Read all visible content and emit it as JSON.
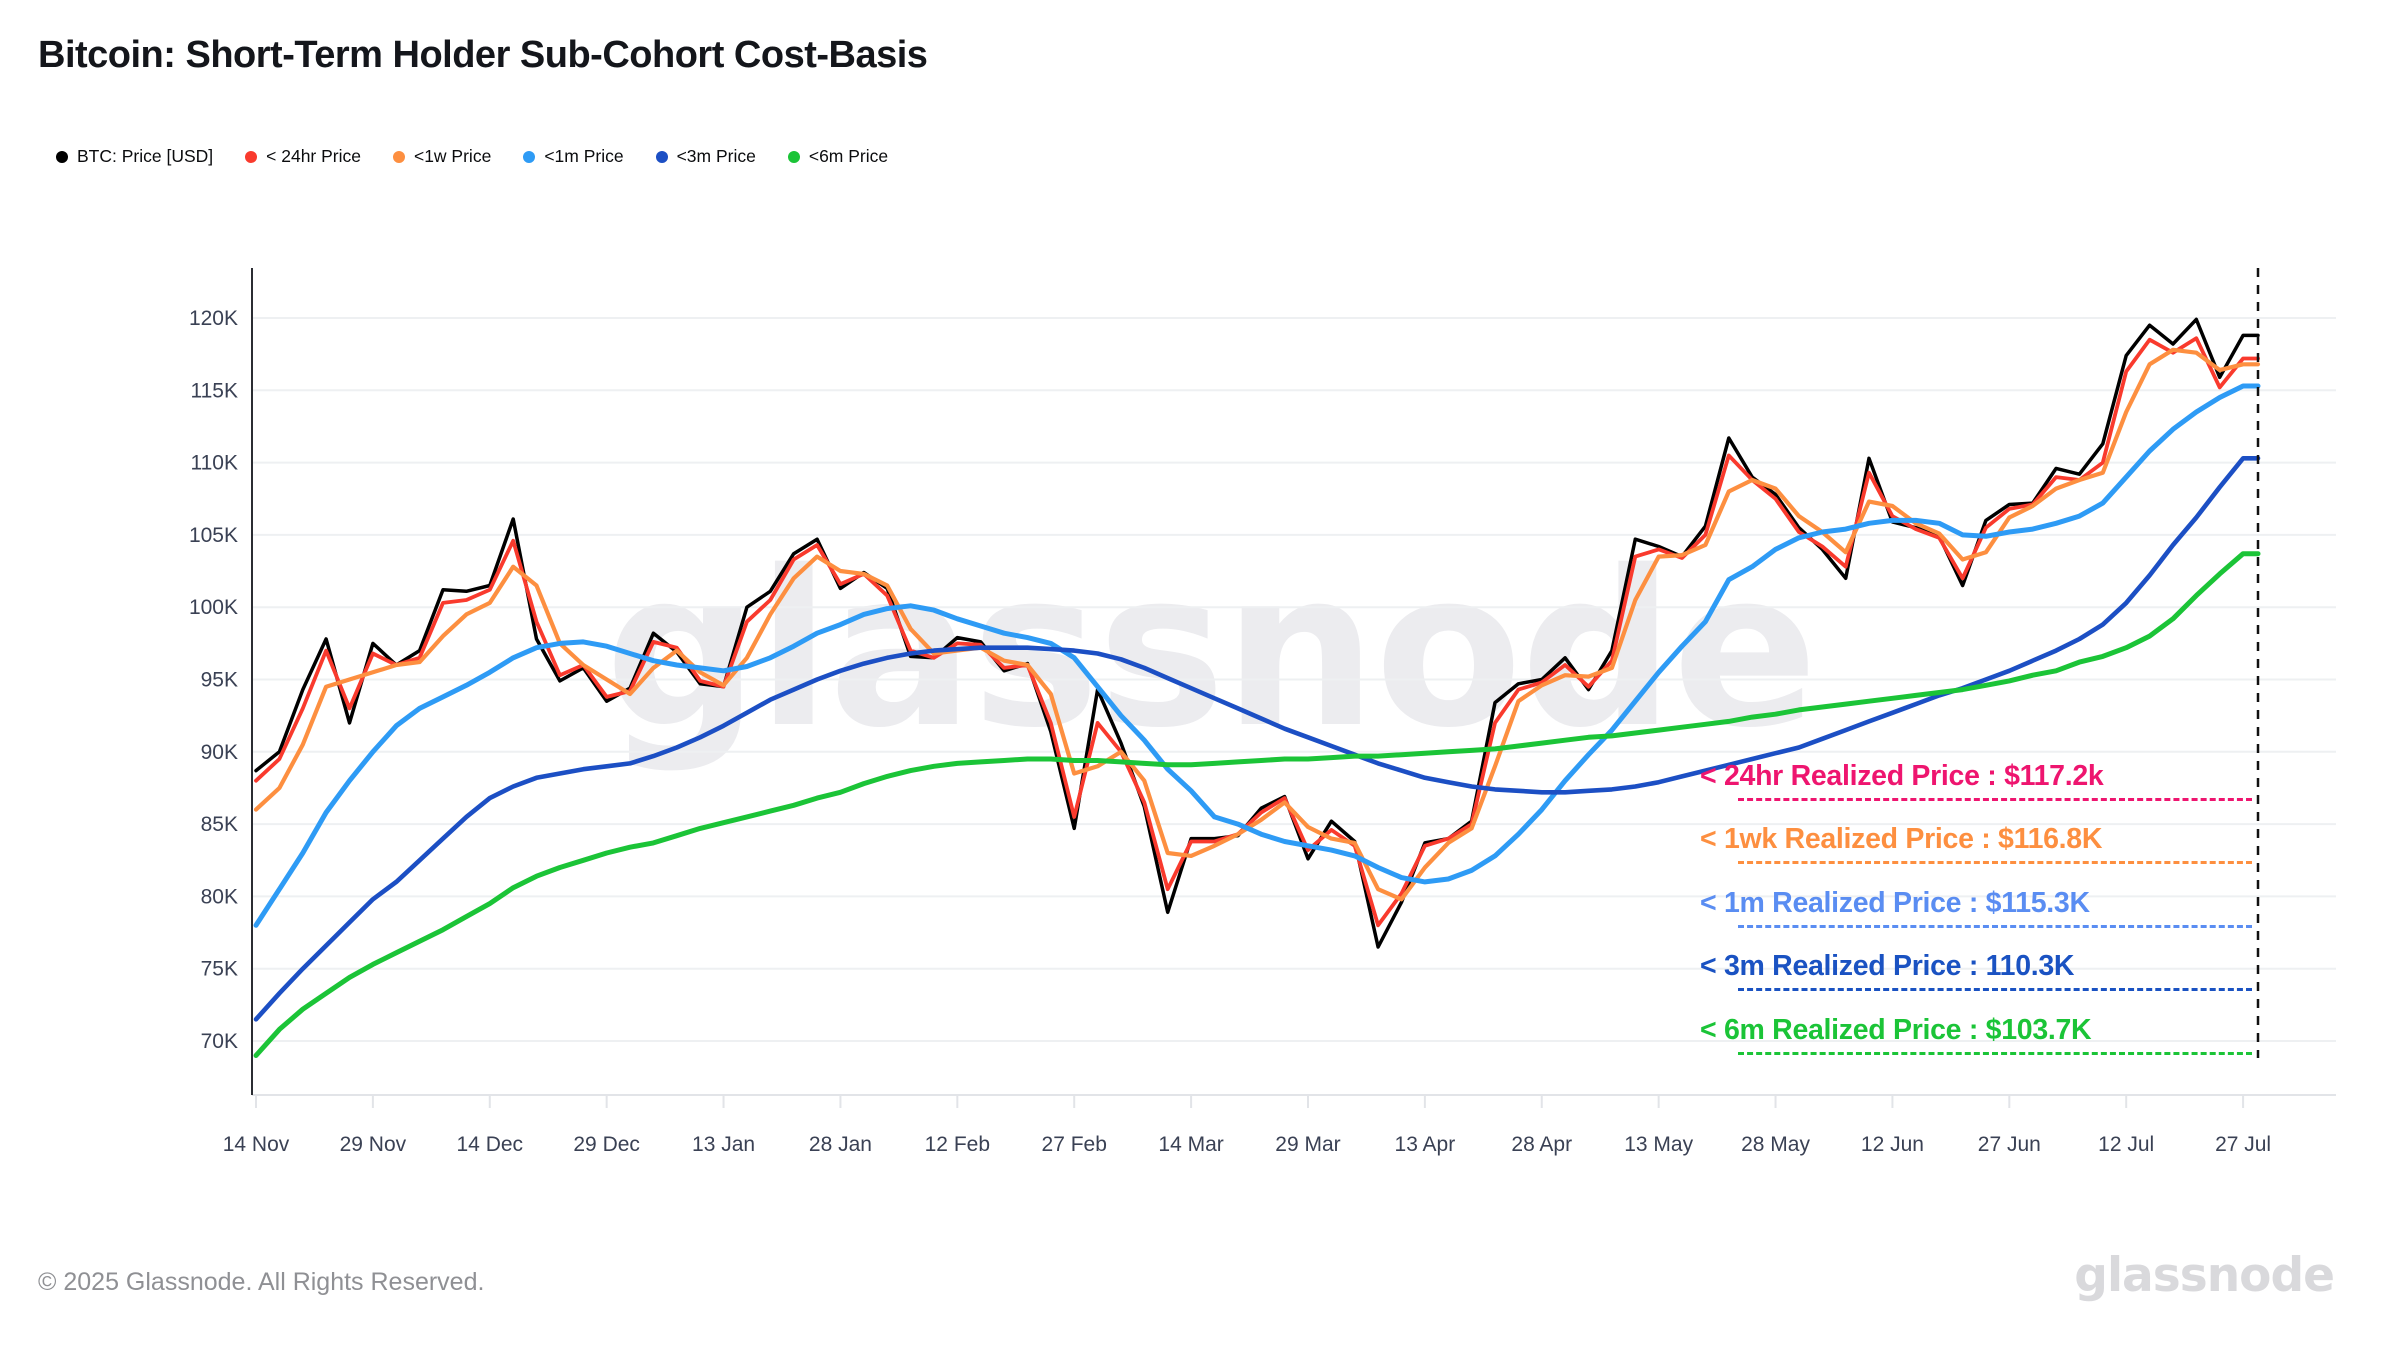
{
  "header": {
    "title": "Bitcoin: Short-Term Holder Sub-Cohort Cost-Basis"
  },
  "legend": {
    "items": [
      {
        "label": "BTC: Price [USD]",
        "color": "#000000"
      },
      {
        "label": "< 24hr Price",
        "color": "#f93a2d"
      },
      {
        "label": "<1w Price",
        "color": "#fd8f40"
      },
      {
        "label": "<1m Price",
        "color": "#2e9bf5"
      },
      {
        "label": "<3m Price",
        "color": "#1c4fc4"
      },
      {
        "label": "<6m Price",
        "color": "#1bc437"
      }
    ]
  },
  "chart_data": {
    "type": "line",
    "title": "Bitcoin: Short-Term Holder Sub-Cohort Cost-Basis",
    "xlabel": "",
    "ylabel": "",
    "unit": "USD (thousands)",
    "grid": true,
    "legend_position": "top-left",
    "ylim": [
      66,
      123.5
    ],
    "y_ticks": [
      {
        "label": "120K",
        "value": 120
      },
      {
        "label": "115K",
        "value": 115
      },
      {
        "label": "110K",
        "value": 110
      },
      {
        "label": "105K",
        "value": 105
      },
      {
        "label": "100K",
        "value": 100
      },
      {
        "label": "95K",
        "value": 95
      },
      {
        "label": "90K",
        "value": 90
      },
      {
        "label": "85K",
        "value": 85
      },
      {
        "label": "80K",
        "value": 80
      },
      {
        "label": "75K",
        "value": 75
      },
      {
        "label": "70K",
        "value": 70
      }
    ],
    "x_ticks": [
      {
        "label": "14 Nov",
        "day": 0
      },
      {
        "label": "29 Nov",
        "day": 15
      },
      {
        "label": "14 Dec",
        "day": 30
      },
      {
        "label": "29 Dec",
        "day": 45
      },
      {
        "label": "13 Jan",
        "day": 60
      },
      {
        "label": "28 Jan",
        "day": 75
      },
      {
        "label": "12 Feb",
        "day": 90
      },
      {
        "label": "27 Feb",
        "day": 105
      },
      {
        "label": "14 Mar",
        "day": 120
      },
      {
        "label": "29 Mar",
        "day": 135
      },
      {
        "label": "13 Apr",
        "day": 150
      },
      {
        "label": "28 Apr",
        "day": 165
      },
      {
        "label": "13 May",
        "day": 180
      },
      {
        "label": "28 May",
        "day": 195
      },
      {
        "label": "12 Jun",
        "day": 210
      },
      {
        "label": "27 Jun",
        "day": 225
      },
      {
        "label": "12 Jul",
        "day": 240
      },
      {
        "label": "27 Jul",
        "day": 255
      }
    ],
    "days": [
      0,
      3,
      6,
      9,
      12,
      15,
      18,
      21,
      24,
      27,
      30,
      33,
      36,
      39,
      42,
      45,
      48,
      51,
      54,
      57,
      60,
      63,
      66,
      69,
      72,
      75,
      78,
      81,
      84,
      87,
      90,
      93,
      96,
      99,
      102,
      105,
      108,
      111,
      114,
      117,
      120,
      123,
      126,
      129,
      132,
      135,
      138,
      141,
      144,
      147,
      150,
      153,
      156,
      159,
      162,
      165,
      168,
      171,
      174,
      177,
      180,
      183,
      186,
      189,
      192,
      195,
      198,
      201,
      204,
      207,
      210,
      213,
      216,
      219,
      222,
      225,
      228,
      231,
      234,
      237,
      240,
      243,
      246,
      249,
      252,
      255
    ],
    "series": [
      {
        "name": "BTC: Price [USD]",
        "color": "#000000",
        "width": 3.5,
        "values": [
          88.7,
          90.0,
          94.3,
          97.8,
          92.0,
          97.5,
          96.0,
          97.0,
          101.2,
          101.1,
          101.5,
          106.1,
          97.8,
          94.9,
          95.8,
          93.5,
          94.4,
          98.2,
          96.9,
          94.7,
          94.5,
          100.0,
          101.1,
          103.7,
          104.7,
          101.3,
          102.4,
          101.3,
          96.6,
          96.5,
          97.9,
          97.6,
          95.6,
          96.1,
          91.4,
          84.7,
          94.3,
          90.6,
          86.2,
          78.9,
          84.0,
          84.0,
          84.2,
          86.1,
          86.9,
          82.6,
          85.2,
          83.8,
          76.5,
          79.6,
          83.7,
          84.0,
          85.2,
          93.4,
          94.7,
          95.0,
          96.5,
          94.3,
          97.0,
          104.7,
          104.2,
          103.5,
          105.6,
          111.7,
          109.0,
          107.8,
          105.5,
          104.0,
          102.0,
          110.3,
          105.9,
          105.5,
          104.9,
          101.5,
          106.0,
          107.1,
          107.2,
          109.6,
          109.2,
          111.3,
          117.4,
          119.5,
          118.2,
          119.9,
          115.9,
          118.8
        ]
      },
      {
        "name": "< 24hr Price",
        "color": "#f93a2d",
        "width": 3.8,
        "values": [
          88.0,
          89.5,
          93.0,
          97.0,
          93.0,
          96.8,
          96.0,
          96.5,
          100.3,
          100.5,
          101.2,
          104.6,
          99.0,
          95.3,
          96.0,
          93.8,
          94.2,
          97.6,
          97.2,
          94.9,
          94.5,
          99.0,
          100.5,
          103.3,
          104.3,
          101.6,
          102.3,
          100.8,
          97.0,
          96.5,
          97.5,
          97.4,
          95.8,
          96.0,
          92.0,
          85.5,
          92.0,
          90.0,
          86.5,
          80.5,
          83.8,
          83.8,
          84.3,
          85.8,
          86.8,
          83.2,
          84.6,
          83.5,
          78.0,
          80.2,
          83.5,
          84.0,
          85.0,
          92.0,
          94.3,
          94.8,
          96.0,
          94.5,
          96.3,
          103.5,
          104.0,
          103.4,
          105.0,
          110.5,
          108.8,
          107.5,
          105.2,
          104.2,
          102.8,
          109.3,
          106.3,
          105.4,
          104.8,
          102.0,
          105.5,
          106.8,
          107.1,
          109.0,
          108.8,
          110.0,
          116.3,
          118.5,
          117.6,
          118.6,
          115.2,
          117.2
        ]
      },
      {
        "name": "<1w Price",
        "color": "#fd8f40",
        "width": 4.2,
        "values": [
          86.0,
          87.5,
          90.5,
          94.5,
          95.0,
          95.5,
          96.0,
          96.2,
          98.0,
          99.5,
          100.3,
          102.8,
          101.5,
          97.5,
          96.0,
          95.0,
          94.0,
          95.8,
          97.0,
          95.5,
          94.6,
          96.5,
          99.5,
          102.0,
          103.5,
          102.5,
          102.3,
          101.5,
          98.5,
          96.8,
          97.0,
          97.2,
          96.3,
          96.0,
          94.0,
          88.5,
          89.0,
          90.0,
          88.0,
          83.0,
          82.8,
          83.5,
          84.3,
          85.3,
          86.5,
          84.8,
          84.0,
          83.7,
          80.5,
          79.8,
          82.0,
          83.7,
          84.7,
          89.0,
          93.5,
          94.6,
          95.3,
          95.2,
          95.8,
          100.5,
          103.5,
          103.6,
          104.3,
          108.0,
          108.8,
          108.2,
          106.3,
          105.2,
          103.8,
          107.3,
          107.0,
          105.8,
          105.1,
          103.3,
          103.8,
          106.2,
          107.0,
          108.2,
          108.8,
          109.3,
          113.5,
          116.8,
          117.8,
          117.6,
          116.4,
          116.8
        ]
      },
      {
        "name": "<1m Price",
        "color": "#2e9bf5",
        "width": 5,
        "values": [
          78.0,
          80.5,
          83.0,
          85.8,
          88.0,
          90.0,
          91.8,
          93.0,
          93.8,
          94.6,
          95.5,
          96.5,
          97.2,
          97.5,
          97.6,
          97.3,
          96.8,
          96.3,
          96.0,
          95.8,
          95.6,
          95.9,
          96.5,
          97.3,
          98.2,
          98.8,
          99.5,
          99.9,
          100.1,
          99.8,
          99.2,
          98.7,
          98.2,
          97.9,
          97.5,
          96.5,
          94.5,
          92.5,
          90.8,
          88.8,
          87.3,
          85.5,
          85.0,
          84.3,
          83.8,
          83.5,
          83.2,
          82.8,
          82.0,
          81.3,
          81.0,
          81.2,
          81.8,
          82.8,
          84.3,
          86.0,
          88.0,
          89.8,
          91.5,
          93.5,
          95.5,
          97.3,
          99.0,
          101.9,
          102.8,
          104.0,
          104.8,
          105.2,
          105.4,
          105.8,
          106.0,
          106.0,
          105.8,
          105.0,
          104.9,
          105.2,
          105.4,
          105.8,
          106.3,
          107.2,
          109.0,
          110.8,
          112.3,
          113.5,
          114.5,
          115.3
        ]
      },
      {
        "name": "<3m Price",
        "color": "#1c4fc4",
        "width": 4.6,
        "values": [
          71.5,
          73.3,
          75.0,
          76.6,
          78.2,
          79.8,
          81.0,
          82.5,
          84.0,
          85.5,
          86.8,
          87.6,
          88.2,
          88.5,
          88.8,
          89.0,
          89.2,
          89.7,
          90.3,
          91.0,
          91.8,
          92.7,
          93.6,
          94.3,
          95.0,
          95.6,
          96.1,
          96.5,
          96.8,
          97.0,
          97.1,
          97.2,
          97.2,
          97.2,
          97.1,
          97.0,
          96.8,
          96.4,
          95.8,
          95.1,
          94.4,
          93.7,
          93.0,
          92.3,
          91.6,
          91.0,
          90.4,
          89.8,
          89.2,
          88.7,
          88.2,
          87.9,
          87.6,
          87.4,
          87.3,
          87.2,
          87.2,
          87.3,
          87.4,
          87.6,
          87.9,
          88.3,
          88.7,
          89.1,
          89.5,
          89.9,
          90.3,
          90.9,
          91.5,
          92.1,
          92.7,
          93.3,
          93.9,
          94.4,
          95.0,
          95.6,
          96.3,
          97.0,
          97.8,
          98.8,
          100.3,
          102.2,
          104.3,
          106.2,
          108.3,
          110.3
        ]
      },
      {
        "name": "<6m Price",
        "color": "#1bc437",
        "width": 5,
        "values": [
          69.0,
          70.8,
          72.2,
          73.3,
          74.4,
          75.3,
          76.1,
          76.9,
          77.7,
          78.6,
          79.5,
          80.6,
          81.4,
          82.0,
          82.5,
          83.0,
          83.4,
          83.7,
          84.2,
          84.7,
          85.1,
          85.5,
          85.9,
          86.3,
          86.8,
          87.2,
          87.8,
          88.3,
          88.7,
          89.0,
          89.2,
          89.3,
          89.4,
          89.5,
          89.5,
          89.4,
          89.4,
          89.3,
          89.2,
          89.1,
          89.1,
          89.2,
          89.3,
          89.4,
          89.5,
          89.5,
          89.6,
          89.7,
          89.7,
          89.8,
          89.9,
          90.0,
          90.1,
          90.2,
          90.4,
          90.6,
          90.8,
          91.0,
          91.1,
          91.3,
          91.5,
          91.7,
          91.9,
          92.1,
          92.4,
          92.6,
          92.9,
          93.1,
          93.3,
          93.5,
          93.7,
          93.9,
          94.1,
          94.3,
          94.6,
          94.9,
          95.3,
          95.6,
          96.2,
          96.6,
          97.2,
          98.0,
          99.2,
          100.8,
          102.3,
          103.7
        ]
      }
    ],
    "final_values": {
      "btc_price": "≈118.8K",
      "lt_24hr": "117.2K",
      "lt_1wk": "116.8K",
      "lt_1m": "115.3K",
      "lt_3m": "110.3K",
      "lt_6m": "103.7K"
    }
  },
  "annotations": [
    {
      "id": "24hr-realized-price",
      "text": "< 24hr Realized Price  : $117.2k",
      "color": "#ee156f"
    },
    {
      "id": "1wk-realized-price",
      "text": "<  1wk Realized Price  : $116.8K",
      "color": "#fd8f40"
    },
    {
      "id": "1m-realized-price",
      "text": "< 1m Realized Price  : $115.3K",
      "color": "#5a8df2"
    },
    {
      "id": "3m-realized-price",
      "text": "< 3m Realized Price  : 110.3K",
      "color": "#1a52c2"
    },
    {
      "id": "6m-realized-price",
      "text": "< 6m Realized Price  : $103.7K",
      "color": "#1bc437"
    }
  ],
  "watermark": "glassnode",
  "footer": {
    "copyright": "© 2025 Glassnode. All Rights Reserved.",
    "brand": "glassnode"
  }
}
